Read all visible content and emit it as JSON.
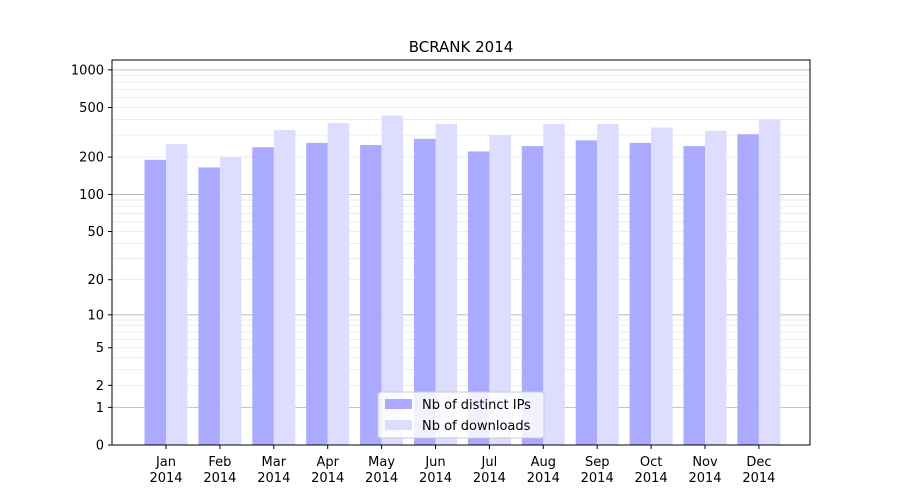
{
  "chart_data": {
    "type": "bar",
    "title": "BCRANK 2014",
    "xlabel": "",
    "ylabel": "",
    "yscale": "log(1+y)",
    "ylim": [
      0,
      1200
    ],
    "yticks": [
      0,
      1,
      2,
      5,
      10,
      20,
      50,
      100,
      200,
      500,
      1000
    ],
    "grid": true,
    "legend_position": "bottom-center",
    "categories": [
      "Jan\n2014",
      "Feb\n2014",
      "Mar\n2014",
      "Apr\n2014",
      "May\n2014",
      "Jun\n2014",
      "Jul\n2014",
      "Aug\n2014",
      "Sep\n2014",
      "Oct\n2014",
      "Nov\n2014",
      "Dec\n2014"
    ],
    "series": [
      {
        "name": "Nb of distinct IPs",
        "color": "#aaaaff",
        "values": [
          190,
          165,
          240,
          260,
          250,
          280,
          222,
          245,
          272,
          260,
          245,
          305
        ]
      },
      {
        "name": "Nb of downloads",
        "color": "#ddddff",
        "values": [
          255,
          200,
          330,
          375,
          430,
          370,
          300,
          370,
          370,
          345,
          325,
          400
        ]
      }
    ]
  }
}
